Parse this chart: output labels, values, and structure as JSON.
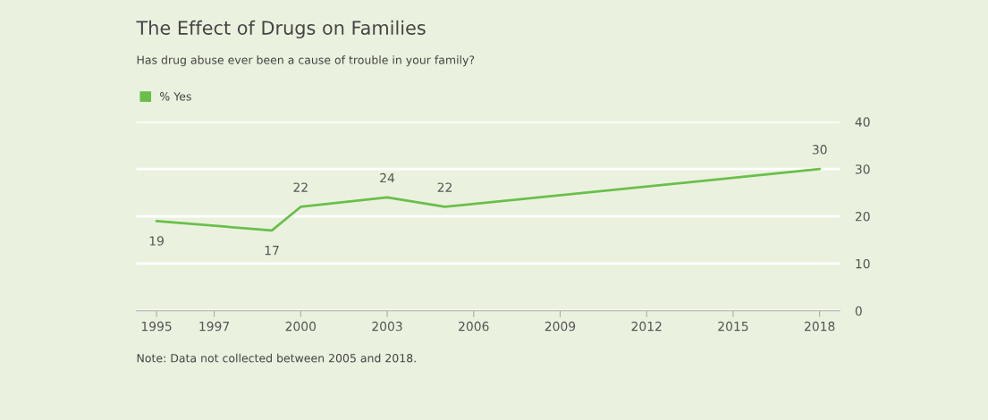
{
  "chart_data": {
    "type": "line",
    "title": "The Effect of Drugs on Families",
    "subtitle": "Has drug abuse ever been a cause of trouble in your family?",
    "x": [
      1995,
      1999,
      2000,
      2003,
      2005,
      2018
    ],
    "series": [
      {
        "name": "% Yes",
        "color": "#6abf4b",
        "values": [
          19,
          17,
          22,
          24,
          22,
          30
        ]
      }
    ],
    "xlim": [
      1994.3,
      2018.7
    ],
    "xticks": [
      1995,
      1997,
      2000,
      2003,
      2006,
      2009,
      2012,
      2015,
      2018
    ],
    "ylim": [
      0,
      40
    ],
    "yticks": [
      0,
      10,
      20,
      30,
      40
    ],
    "grid": "y",
    "legend": "top left",
    "data_labels": true,
    "marker": "none",
    "line_style": "solid",
    "annotations": [
      "Note: Data not collected between 2005 and 2018."
    ]
  }
}
